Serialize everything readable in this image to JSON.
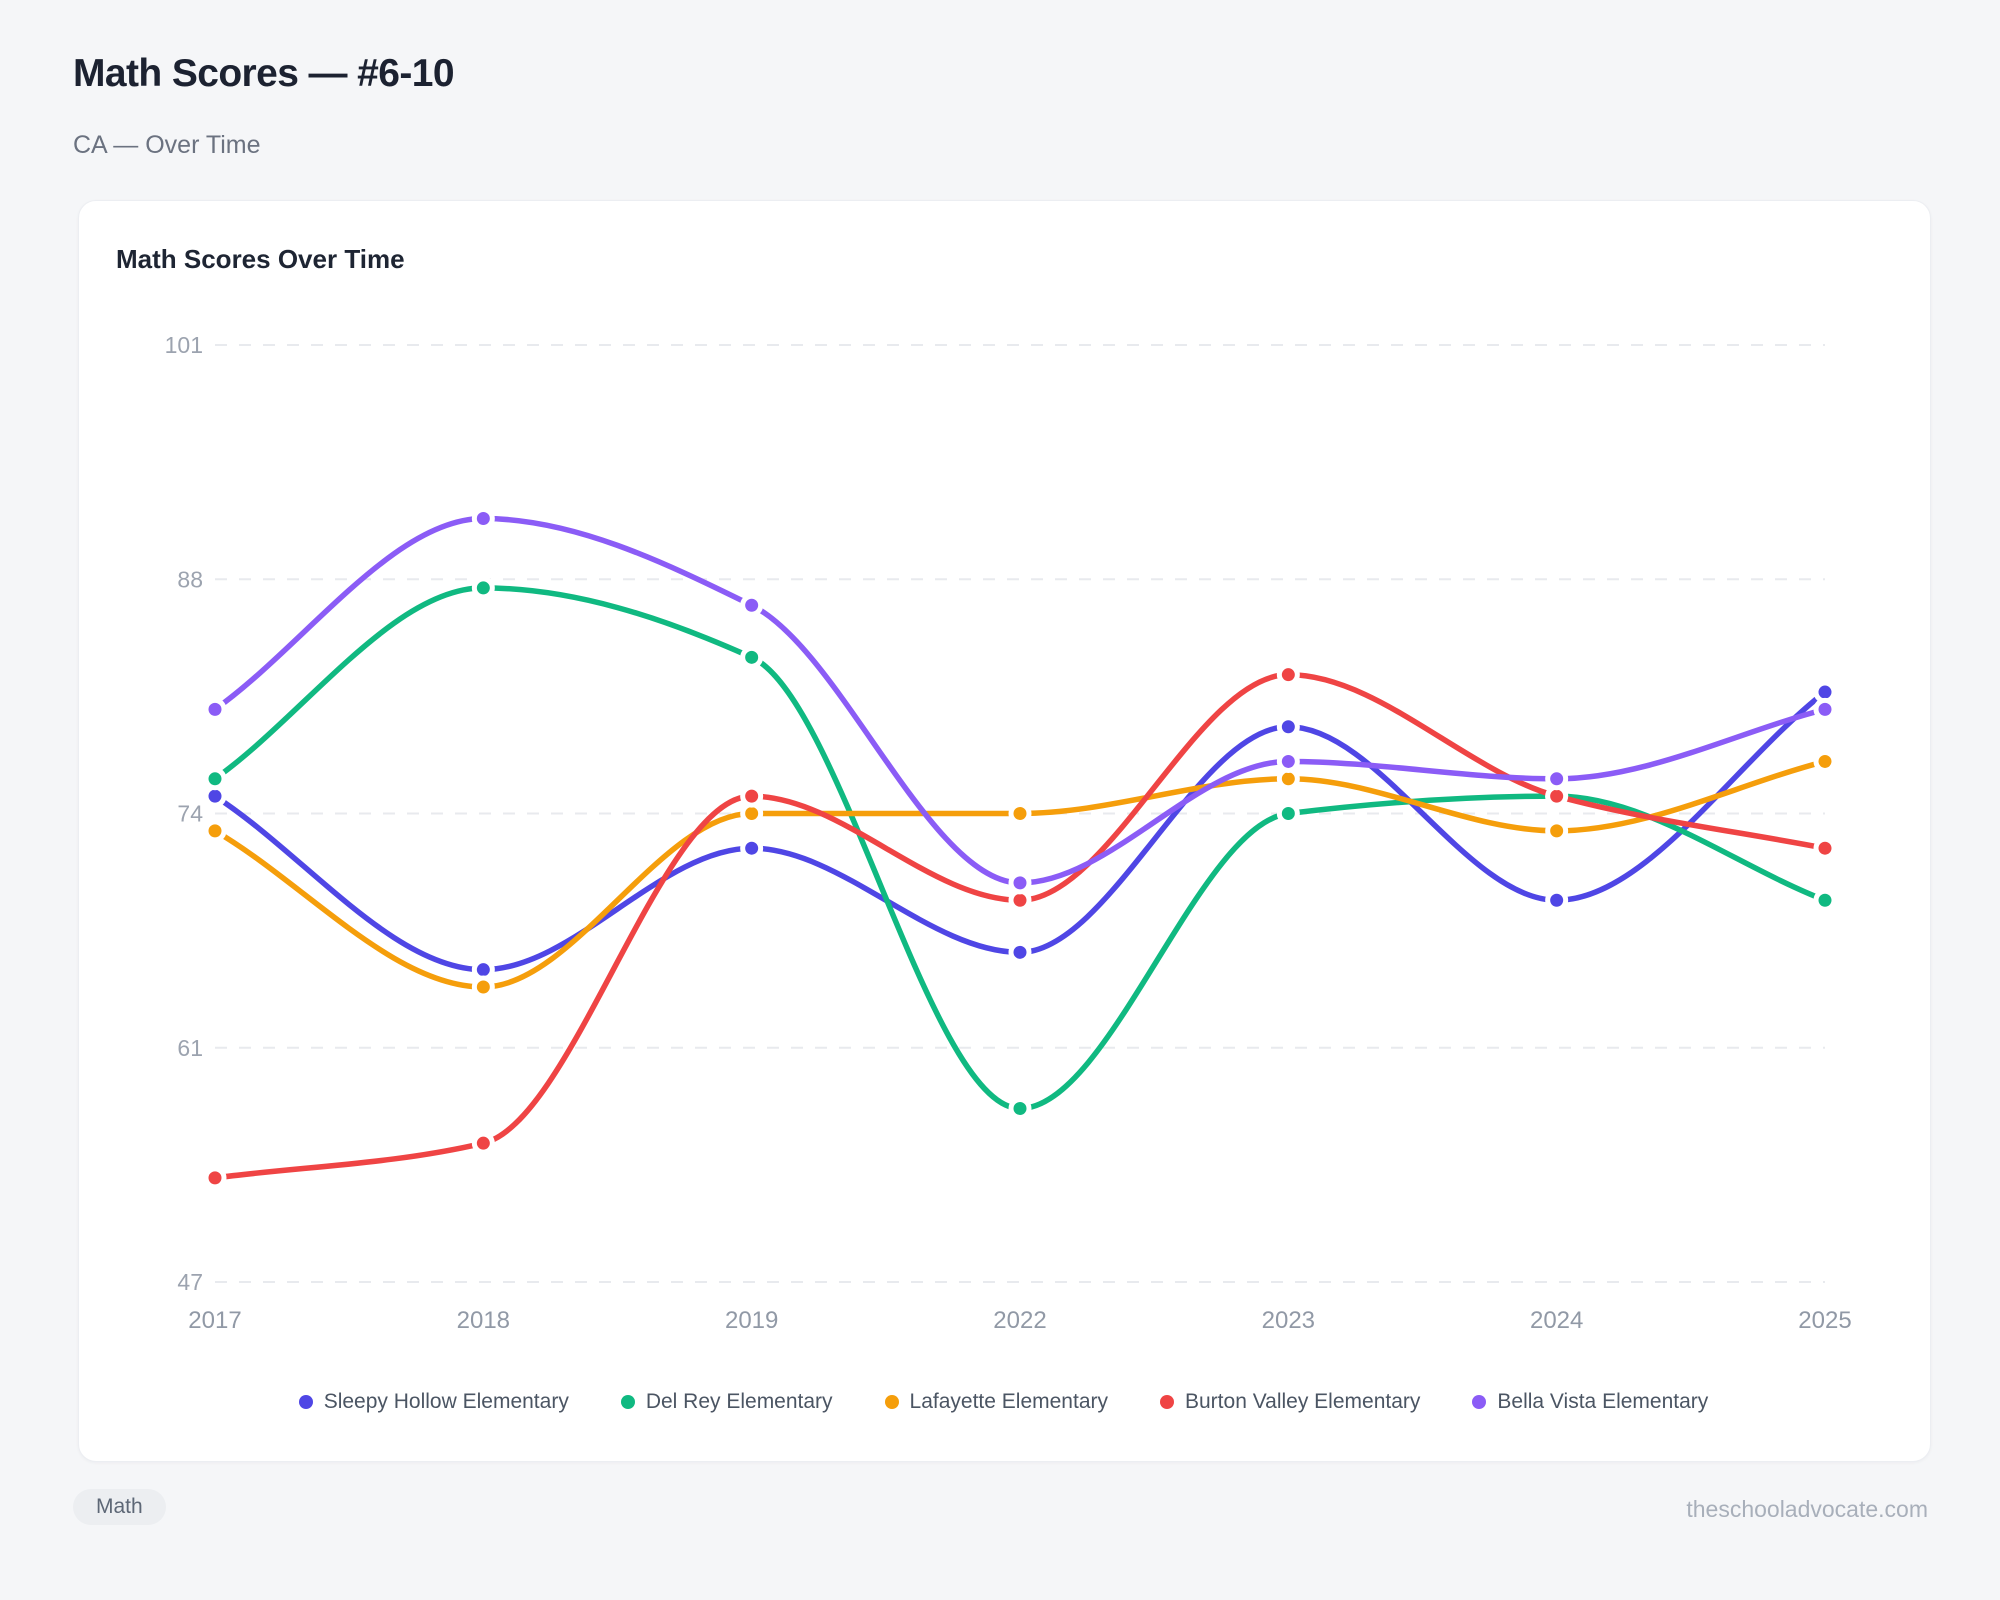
{
  "page": {
    "title": "Math Scores — #6-10",
    "subtitle": "CA — Over Time",
    "footer": {
      "badge": "Math",
      "site": "theschooladvocate.com"
    }
  },
  "chart_data": {
    "type": "line",
    "title": "Math Scores Over Time",
    "x_labels": [
      "2017",
      "2018",
      "2019",
      "2022",
      "2023",
      "2024",
      "2025"
    ],
    "y_ticks": [
      47,
      61,
      74,
      88,
      101
    ],
    "ylim": [
      47,
      101
    ],
    "grid": "horizontal-dashed",
    "legend_position": "bottom",
    "curve": "monotone",
    "series": [
      {
        "name": "Sleepy Hollow Elementary",
        "color": "#4f46e5",
        "values": [
          75,
          65,
          72,
          66,
          79,
          69,
          81
        ]
      },
      {
        "name": "Del Rey Elementary",
        "color": "#10b981",
        "values": [
          76,
          87,
          83,
          57,
          74,
          75,
          69
        ]
      },
      {
        "name": "Lafayette Elementary",
        "color": "#f59e0b",
        "values": [
          73,
          64,
          74,
          74,
          76,
          73,
          77
        ]
      },
      {
        "name": "Burton Valley Elementary",
        "color": "#ef4444",
        "values": [
          53,
          55,
          75,
          69,
          82,
          75,
          72
        ]
      },
      {
        "name": "Bella Vista Elementary",
        "color": "#8b5cf6",
        "values": [
          80,
          91,
          86,
          70,
          77,
          76,
          80
        ]
      }
    ]
  }
}
